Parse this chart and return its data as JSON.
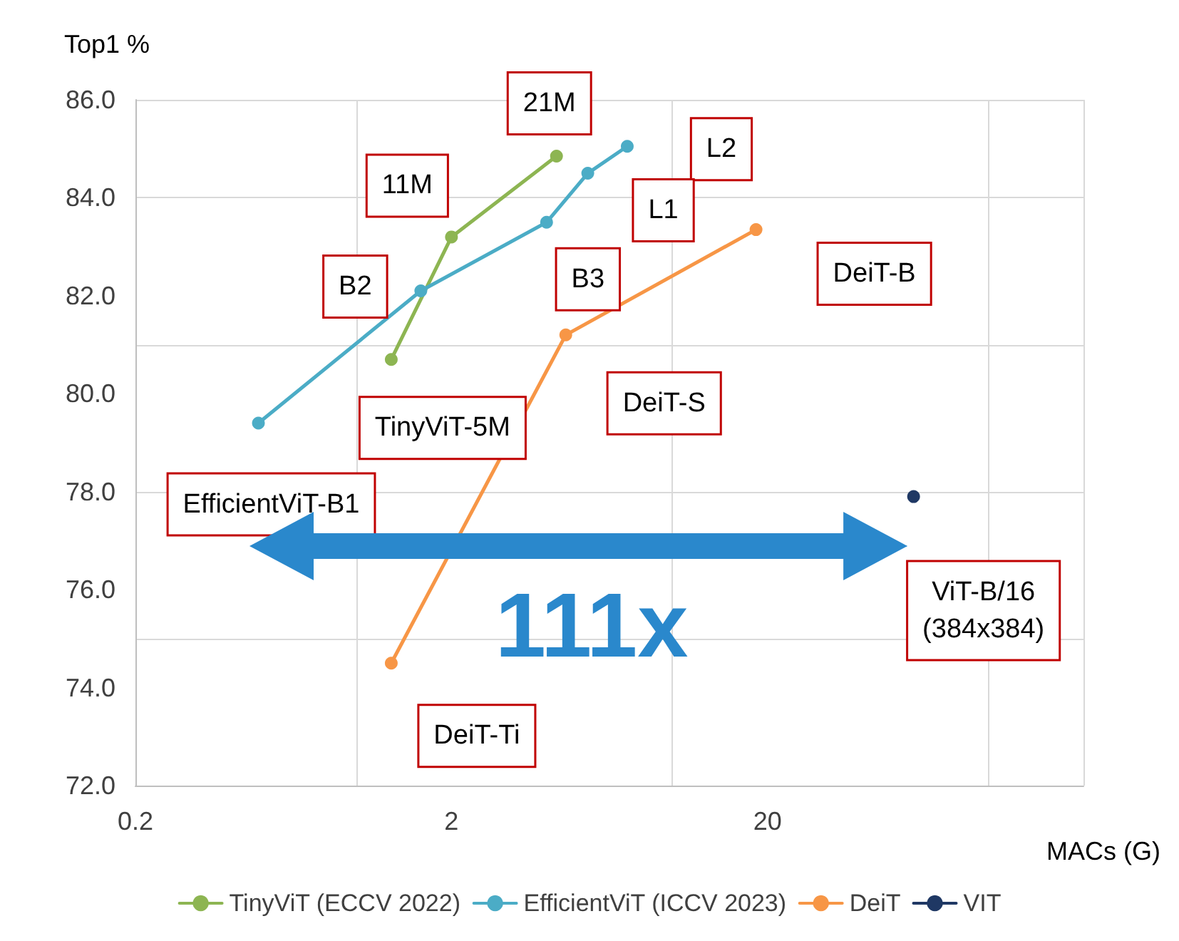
{
  "chart_data": {
    "type": "line",
    "xlabel": "MACs (G)",
    "ylabel": "Top1 %",
    "log": "x",
    "grid": true,
    "legend": "bottom",
    "marker": "circle",
    "line_style": "solid",
    "xlim": [
      0.2,
      200
    ],
    "xticks": [
      0.2,
      2,
      20
    ],
    "ylim": [
      72,
      86
    ],
    "yticks": [
      {
        "value": 72,
        "label": "72.0"
      },
      {
        "value": 74,
        "label": "74.0"
      },
      {
        "value": 76,
        "label": "76.0"
      },
      {
        "value": 78,
        "label": "78.0"
      },
      {
        "value": 80,
        "label": "80.0"
      },
      {
        "value": 82,
        "label": "82.0"
      },
      {
        "value": 84,
        "label": "84.0"
      },
      {
        "value": 86,
        "label": "86.0"
      }
    ],
    "series": [
      {
        "name": "TinyViT (ECCV 2022)",
        "color": "#8db552",
        "x": [
          1.29,
          2,
          4.3
        ],
        "values": [
          80.7,
          83.2,
          84.85
        ]
      },
      {
        "name": "EfficientViT (ICCV 2023)",
        "color": "#4bacc6",
        "x": [
          0.49,
          1.6,
          4,
          5.4,
          7.2
        ],
        "values": [
          79.4,
          82.1,
          83.5,
          84.5,
          85.05
        ]
      },
      {
        "name": "DeiT",
        "color": "#f79646",
        "x": [
          1.29,
          4.6,
          18.4
        ],
        "values": [
          74.5,
          81.2,
          83.35
        ]
      },
      {
        "name": "VIT",
        "color": "#1f3864",
        "x": [
          58
        ],
        "values": [
          77.9
        ]
      }
    ],
    "annotations": [
      {
        "text": "21M",
        "x": 4.3,
        "y": 84.85
      },
      {
        "text": "11M",
        "x": 2,
        "y": 83.2
      },
      {
        "text": "B2",
        "x": 1.6,
        "y": 82.1
      },
      {
        "text": "L2",
        "x": 7.2,
        "y": 85.05
      },
      {
        "text": "L1",
        "x": 5.4,
        "y": 84.5
      },
      {
        "text": "B3",
        "x": 4,
        "y": 83.5
      },
      "DeiT-B",
      {
        "text": "DeiT-S",
        "x": 4.6,
        "y": 81.2
      },
      {
        "text": "TinyViT-5M",
        "x": 1.29,
        "y": 80.7
      },
      {
        "text": "EfficientViT-B1",
        "x": 0.49,
        "y": 79.4
      },
      {
        "text": "ViT-B/16\n(384x384)",
        "x": 58,
        "y": 77.9
      },
      {
        "text": "DeiT-Ti",
        "x": 1.29,
        "y": 74.5
      },
      "111x"
    ]
  }
}
